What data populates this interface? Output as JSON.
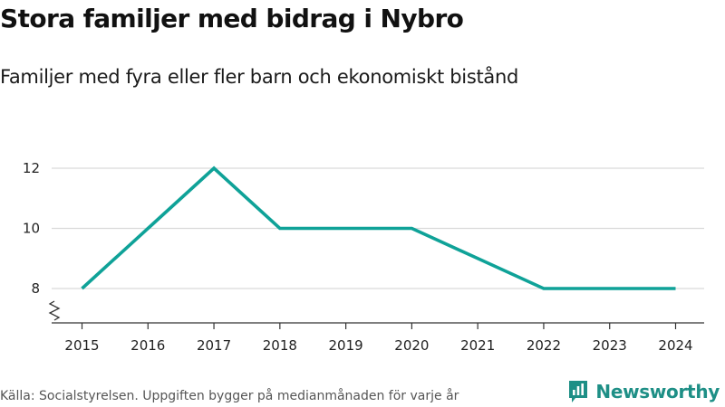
{
  "header": {
    "title": "Stora familjer med bidrag i Nybro",
    "subtitle": "Familjer med fyra eller fler barn och ekonomiskt bistånd"
  },
  "footer": {
    "source": "Källa: Socialstyrelsen. Uppgiften bygger på medianmånaden för varje år",
    "brand": "Newsworthy"
  },
  "colors": {
    "line": "#0fa298",
    "grid": "#d9d9d9",
    "axis": "#333333",
    "brand": "#1e8f86"
  },
  "chart_data": {
    "type": "line",
    "title": "Stora familjer med bidrag i Nybro",
    "subtitle": "Familjer med fyra eller fler barn och ekonomiskt bistånd",
    "xlabel": "",
    "ylabel": "",
    "x": [
      "2015",
      "2016",
      "2017",
      "2018",
      "2019",
      "2020",
      "2021",
      "2022",
      "2023",
      "2024"
    ],
    "series": [
      {
        "name": "Familjer",
        "values": [
          8,
          10,
          12,
          10,
          10,
          10,
          9,
          8,
          8,
          8
        ]
      }
    ],
    "yticks": [
      8,
      10,
      12
    ],
    "ylim": [
      7,
      12.3
    ],
    "grid": true,
    "axis_break": true
  }
}
